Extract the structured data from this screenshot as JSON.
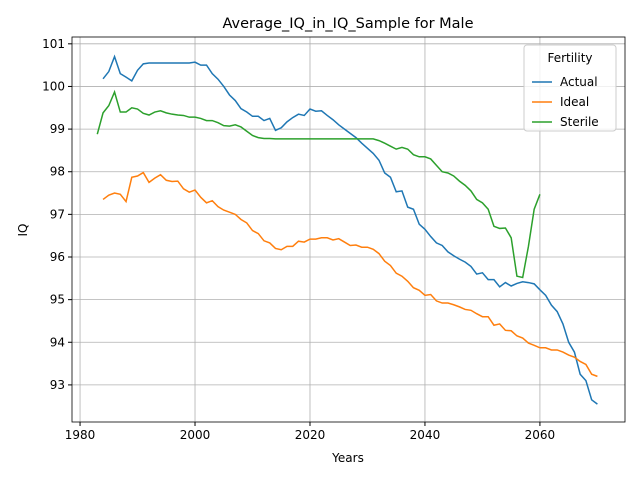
{
  "chart_data": {
    "type": "line",
    "title": "Average_IQ_in_IQ_Sample for Male",
    "xlabel": "Years",
    "ylabel": "IQ",
    "legend_title": "Fertility",
    "legend": "upper right",
    "grid": true,
    "xlim": [
      1978.6,
      2074.8
    ],
    "ylim": [
      92.13,
      101.16
    ],
    "xticks": [
      1980,
      2000,
      2020,
      2040,
      2060
    ],
    "yticks": [
      93,
      94,
      95,
      96,
      97,
      98,
      99,
      100,
      101
    ],
    "series": [
      {
        "name": "Actual",
        "color": "#1f77b4",
        "x": [
          1984,
          1985,
          1986,
          1987,
          1988,
          1989,
          1990,
          1991,
          1992,
          1993,
          1994,
          1995,
          1996,
          1997,
          1998,
          1999,
          2000,
          2001,
          2002,
          2003,
          2004,
          2005,
          2006,
          2007,
          2008,
          2009,
          2010,
          2011,
          2012,
          2013,
          2014,
          2015,
          2016,
          2017,
          2018,
          2019,
          2020,
          2021,
          2022,
          2023,
          2024,
          2025,
          2026,
          2027,
          2028,
          2029,
          2030,
          2031,
          2032,
          2033,
          2034,
          2035,
          2036,
          2037,
          2038,
          2039,
          2040,
          2041,
          2042,
          2043,
          2044,
          2045,
          2046,
          2047,
          2048,
          2049,
          2050,
          2051,
          2052,
          2053,
          2054,
          2055,
          2056,
          2057,
          2058,
          2059,
          2060,
          2061,
          2062,
          2063,
          2064,
          2065,
          2066,
          2067,
          2068,
          2069,
          2070
        ],
        "values": [
          100.18,
          100.35,
          100.7,
          100.3,
          100.22,
          100.13,
          100.38,
          100.53,
          100.55,
          100.55,
          100.55,
          100.55,
          100.55,
          100.55,
          100.55,
          100.55,
          100.57,
          100.5,
          100.5,
          100.3,
          100.17,
          100.0,
          99.8,
          99.67,
          99.48,
          99.4,
          99.3,
          99.3,
          99.2,
          99.25,
          98.97,
          99.03,
          99.17,
          99.27,
          99.35,
          99.32,
          99.47,
          99.42,
          99.43,
          99.32,
          99.22,
          99.1,
          99.0,
          98.9,
          98.8,
          98.67,
          98.55,
          98.43,
          98.27,
          97.97,
          97.87,
          97.53,
          97.55,
          97.17,
          97.12,
          96.77,
          96.65,
          96.48,
          96.33,
          96.27,
          96.12,
          96.03,
          95.95,
          95.88,
          95.78,
          95.6,
          95.63,
          95.47,
          95.47,
          95.3,
          95.4,
          95.32,
          95.38,
          95.42,
          95.4,
          95.37,
          95.23,
          95.1,
          94.87,
          94.72,
          94.43,
          94.0,
          93.77,
          93.25,
          93.1,
          92.65,
          92.55
        ]
      },
      {
        "name": "Ideal",
        "color": "#ff7f0e",
        "x": [
          1984,
          1985,
          1986,
          1987,
          1988,
          1989,
          1990,
          1991,
          1992,
          1993,
          1994,
          1995,
          1996,
          1997,
          1998,
          1999,
          2000,
          2001,
          2002,
          2003,
          2004,
          2005,
          2006,
          2007,
          2008,
          2009,
          2010,
          2011,
          2012,
          2013,
          2014,
          2015,
          2016,
          2017,
          2018,
          2019,
          2020,
          2021,
          2022,
          2023,
          2024,
          2025,
          2026,
          2027,
          2028,
          2029,
          2030,
          2031,
          2032,
          2033,
          2034,
          2035,
          2036,
          2037,
          2038,
          2039,
          2040,
          2041,
          2042,
          2043,
          2044,
          2045,
          2046,
          2047,
          2048,
          2049,
          2050,
          2051,
          2052,
          2053,
          2054,
          2055,
          2056,
          2057,
          2058,
          2059,
          2060,
          2061,
          2062,
          2063,
          2064,
          2065,
          2066,
          2067,
          2068,
          2069,
          2070
        ],
        "values": [
          97.35,
          97.45,
          97.5,
          97.47,
          97.3,
          97.87,
          97.9,
          97.98,
          97.75,
          97.85,
          97.93,
          97.8,
          97.77,
          97.78,
          97.6,
          97.52,
          97.57,
          97.4,
          97.27,
          97.32,
          97.18,
          97.1,
          97.05,
          97.0,
          96.88,
          96.8,
          96.62,
          96.55,
          96.38,
          96.33,
          96.2,
          96.17,
          96.25,
          96.25,
          96.37,
          96.35,
          96.42,
          96.42,
          96.45,
          96.45,
          96.4,
          96.43,
          96.35,
          96.27,
          96.28,
          96.23,
          96.23,
          96.18,
          96.08,
          95.9,
          95.8,
          95.62,
          95.55,
          95.43,
          95.28,
          95.22,
          95.1,
          95.12,
          94.97,
          94.92,
          94.92,
          94.88,
          94.83,
          94.77,
          94.75,
          94.67,
          94.6,
          94.6,
          94.4,
          94.43,
          94.28,
          94.27,
          94.15,
          94.1,
          93.98,
          93.93,
          93.87,
          93.87,
          93.82,
          93.82,
          93.77,
          93.7,
          93.65,
          93.55,
          93.48,
          93.25,
          93.2
        ]
      },
      {
        "name": "Sterile",
        "color": "#2ca02c",
        "x": [
          1983,
          1984,
          1985,
          1986,
          1987,
          1988,
          1989,
          1990,
          1991,
          1992,
          1993,
          1994,
          1995,
          1996,
          1997,
          1998,
          1999,
          2000,
          2001,
          2002,
          2003,
          2004,
          2005,
          2006,
          2007,
          2008,
          2009,
          2010,
          2011,
          2012,
          2013,
          2014,
          2015,
          2016,
          2017,
          2018,
          2019,
          2020,
          2021,
          2022,
          2023,
          2024,
          2025,
          2026,
          2027,
          2028,
          2029,
          2030,
          2031,
          2032,
          2033,
          2034,
          2035,
          2036,
          2037,
          2038,
          2039,
          2040,
          2041,
          2042,
          2043,
          2044,
          2045,
          2046,
          2047,
          2048,
          2049,
          2050,
          2051,
          2052,
          2053,
          2054,
          2055,
          2056,
          2057,
          2058,
          2059,
          2060
        ],
        "values": [
          98.88,
          99.38,
          99.55,
          99.87,
          99.4,
          99.4,
          99.5,
          99.47,
          99.37,
          99.33,
          99.4,
          99.43,
          99.38,
          99.35,
          99.33,
          99.32,
          99.28,
          99.28,
          99.25,
          99.2,
          99.2,
          99.15,
          99.08,
          99.07,
          99.1,
          99.05,
          98.95,
          98.85,
          98.8,
          98.78,
          98.78,
          98.77,
          98.77,
          98.77,
          98.77,
          98.77,
          98.77,
          98.77,
          98.77,
          98.77,
          98.77,
          98.77,
          98.77,
          98.77,
          98.77,
          98.77,
          98.77,
          98.77,
          98.77,
          98.73,
          98.67,
          98.6,
          98.53,
          98.57,
          98.53,
          98.4,
          98.35,
          98.35,
          98.3,
          98.15,
          98.0,
          97.97,
          97.9,
          97.78,
          97.68,
          97.55,
          97.35,
          97.27,
          97.12,
          96.72,
          96.67,
          96.68,
          96.45,
          95.55,
          95.52,
          96.25,
          97.12,
          97.47
        ]
      }
    ]
  }
}
